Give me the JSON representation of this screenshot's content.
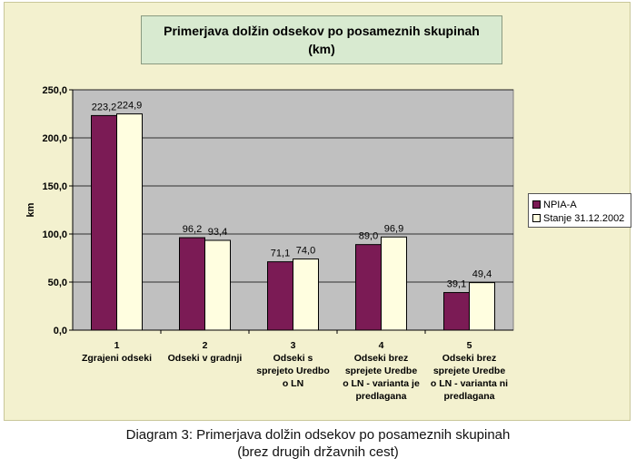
{
  "title": {
    "line1": "Primerjava dolžin odsekov po posameznih skupinah",
    "line2": "(km)"
  },
  "caption": {
    "line1": "Diagram 3: Primerjava dolžin odsekov po posameznih skupinah",
    "line2": "(brez drugih državnih cest)"
  },
  "colors": {
    "series1": "#7b1b55",
    "series2": "#fffee0",
    "plot_bg": "#c0c0c0",
    "frame_bg": "#f3f1cf",
    "title_bg": "#d8ead0"
  },
  "chart_data": {
    "type": "bar",
    "title": "Primerjava dolžin odsekov po posameznih skupinah (km)",
    "ylabel": "km",
    "xlabel": "",
    "ylim": [
      0,
      250
    ],
    "yticks": [
      "0,0",
      "50,0",
      "100,0",
      "150,0",
      "200,0",
      "250,0"
    ],
    "grid": true,
    "legend_position": "right",
    "categories": [
      [
        "1",
        "Zgrajeni odseki"
      ],
      [
        "2",
        "Odseki v gradnji"
      ],
      [
        "3",
        "Odseki s",
        "sprejeto Uredbo",
        "o LN"
      ],
      [
        "4",
        "Odseki brez",
        "sprejete Uredbe",
        "o LN - varianta je",
        "predlagana"
      ],
      [
        "5",
        "Odseki brez",
        "sprejete Uredbe",
        "o LN - varianta ni",
        "predlagana"
      ]
    ],
    "series": [
      {
        "name": "NPIA-A",
        "values": [
          223.2,
          96.2,
          71.1,
          89.0,
          39.1
        ],
        "labels": [
          "223,2",
          "96,2",
          "71,1",
          "89,0",
          "39,1"
        ]
      },
      {
        "name": "Stanje 31.12.2002",
        "values": [
          224.9,
          93.4,
          74.0,
          96.9,
          49.4
        ],
        "labels": [
          "224,9",
          "93,4",
          "74,0",
          "96,9",
          "49,4"
        ]
      }
    ]
  }
}
